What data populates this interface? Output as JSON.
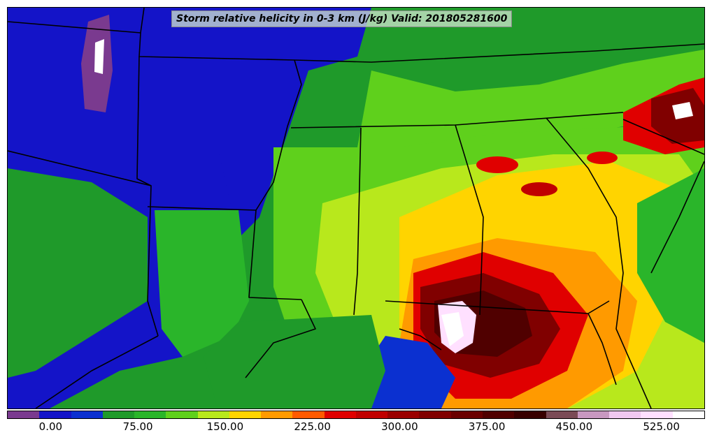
{
  "title": "Storm relative helicity in 0-3 km (J/kg) Valid: 201805281600",
  "colorbar": {
    "colors": [
      "#7a3a8f",
      "#1414c8",
      "#0b30d0",
      "#1f9a2a",
      "#2ab52a",
      "#5fd01c",
      "#b8e81c",
      "#ffd400",
      "#ff9a00",
      "#ff5a00",
      "#e00000",
      "#c00000",
      "#9a0000",
      "#800000",
      "#6a0000",
      "#500000",
      "#380000",
      "#7a4a55",
      "#c898c0",
      "#f0c8f0",
      "#ffe0ff",
      "#ffffff"
    ],
    "tick_labels": [
      "0.00",
      "75.00",
      "150.00",
      "225.00",
      "300.00",
      "375.00",
      "450.00",
      "525.00"
    ],
    "tick_values": [
      0,
      75,
      150,
      225,
      300,
      375,
      450,
      525
    ],
    "range": [
      -37.5,
      562.5
    ]
  },
  "map": {
    "field": "Storm relative helicity 0-3 km",
    "units": "J/kg",
    "colors": {
      "background": "#1f9a2a",
      "low": "#1414c8",
      "mid": "#5fd01c",
      "yellow": "#ffd400",
      "orange": "#ff9a00",
      "red": "#c00000",
      "dark": "#500000",
      "white": "#ffffff",
      "purple": "#7a3a8f",
      "border": "#000000"
    }
  }
}
